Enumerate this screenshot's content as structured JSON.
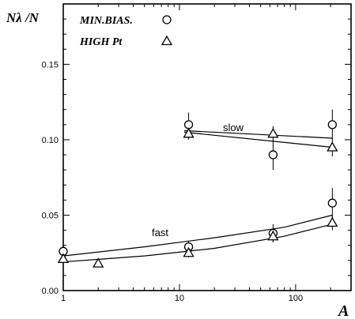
{
  "chart_data": {
    "type": "scatter",
    "xlabel": "A",
    "ylabel": "Nλ /N",
    "xscale": "log",
    "xlim": [
      1,
      300
    ],
    "ylim": [
      0,
      0.19
    ],
    "x_tick_labels": [
      "1",
      "10",
      "100"
    ],
    "y_tick_labels": [
      "0.00",
      "0.05",
      "0.10",
      "0.15"
    ],
    "legend": {
      "placement": "top-left",
      "entries": [
        {
          "label": "MIN.BIAS.",
          "marker": "circle"
        },
        {
          "label": "HIGH Pt",
          "marker": "triangle"
        }
      ]
    },
    "annotations": [
      "slow",
      "fast"
    ],
    "series": [
      {
        "name": "MIN.BIAS.",
        "marker": "circle",
        "points": [
          {
            "x": 1,
            "y": 0.026,
            "err": 0.003
          },
          {
            "x": 12,
            "y": 0.11,
            "err": 0.008
          },
          {
            "x": 12,
            "y": 0.029,
            "err": 0.004
          },
          {
            "x": 64,
            "y": 0.09,
            "err": 0.01
          },
          {
            "x": 64,
            "y": 0.038,
            "err": 0.006
          },
          {
            "x": 207,
            "y": 0.11,
            "err": 0.01
          },
          {
            "x": 207,
            "y": 0.058,
            "err": 0.01
          }
        ]
      },
      {
        "name": "HIGH Pt",
        "marker": "triangle",
        "points": [
          {
            "x": 1,
            "y": 0.021,
            "err": 0.002
          },
          {
            "x": 2,
            "y": 0.018,
            "err": 0.002
          },
          {
            "x": 12,
            "y": 0.104,
            "err": 0.004
          },
          {
            "x": 12,
            "y": 0.025,
            "err": 0.003
          },
          {
            "x": 64,
            "y": 0.104,
            "err": 0.005
          },
          {
            "x": 64,
            "y": 0.036,
            "err": 0.004
          },
          {
            "x": 207,
            "y": 0.095,
            "err": 0.006
          },
          {
            "x": 207,
            "y": 0.045,
            "err": 0.005
          }
        ]
      }
    ],
    "fit_lines": [
      {
        "label": "slow",
        "points": [
          [
            11,
            0.106
          ],
          [
            207,
            0.101
          ]
        ]
      },
      {
        "label": "slow",
        "points": [
          [
            11,
            0.105
          ],
          [
            207,
            0.095
          ]
        ]
      },
      {
        "label": "fast",
        "points": [
          [
            1,
            0.023
          ],
          [
            5,
            0.029
          ],
          [
            20,
            0.035
          ],
          [
            80,
            0.042
          ],
          [
            207,
            0.05
          ]
        ]
      },
      {
        "label": "fast",
        "points": [
          [
            1,
            0.019
          ],
          [
            5,
            0.023
          ],
          [
            20,
            0.028
          ],
          [
            80,
            0.036
          ],
          [
            207,
            0.044
          ]
        ]
      }
    ]
  }
}
